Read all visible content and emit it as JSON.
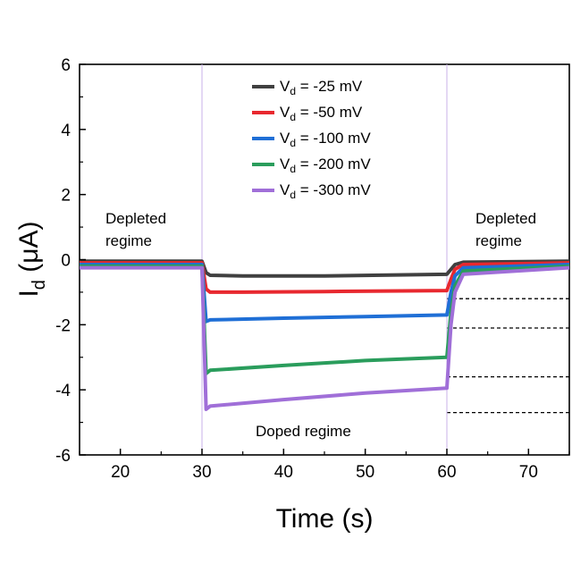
{
  "chart_data": {
    "type": "line",
    "xlabel": "Time (s)",
    "ylabel_main": "I",
    "ylabel_sub": "d",
    "ylabel_unit": " (μA)",
    "xlim": [
      15,
      75
    ],
    "ylim": [
      -6,
      6
    ],
    "xticks": [
      20,
      30,
      40,
      50,
      60,
      70
    ],
    "yticks": [
      -6,
      -4,
      -2,
      0,
      2,
      4,
      6
    ],
    "grid": false,
    "legend_position": "top-center",
    "legend_prefix": "V",
    "legend_sub": "d",
    "series": [
      {
        "name": " = -25 mV",
        "color": "#404040",
        "x": [
          15,
          30,
          30.5,
          31,
          35,
          45,
          60,
          60.5,
          61,
          62,
          75
        ],
        "y": [
          -0.05,
          -0.05,
          -0.4,
          -0.48,
          -0.5,
          -0.5,
          -0.45,
          -0.3,
          -0.15,
          -0.08,
          -0.05
        ]
      },
      {
        "name": " = -50 mV",
        "color": "#e8282f",
        "x": [
          15,
          30,
          30.5,
          31,
          35,
          45,
          60,
          60.5,
          61,
          62,
          75
        ],
        "y": [
          -0.1,
          -0.1,
          -0.9,
          -1.0,
          -1.0,
          -0.98,
          -0.95,
          -0.6,
          -0.3,
          -0.15,
          -0.1
        ]
      },
      {
        "name": " = -100 mV",
        "color": "#1f6fd6",
        "x": [
          15,
          30,
          30.5,
          31,
          40,
          50,
          60,
          60.5,
          61,
          62,
          75
        ],
        "y": [
          -0.15,
          -0.15,
          -1.9,
          -1.85,
          -1.8,
          -1.75,
          -1.7,
          -1.0,
          -0.5,
          -0.25,
          -0.15
        ]
      },
      {
        "name": " = -200 mV",
        "color": "#2a9d5c",
        "x": [
          15,
          30,
          30.5,
          31,
          40,
          50,
          60,
          60.5,
          61,
          62,
          75
        ],
        "y": [
          -0.2,
          -0.2,
          -3.5,
          -3.4,
          -3.25,
          -3.1,
          -3.0,
          -1.6,
          -0.8,
          -0.35,
          -0.2
        ]
      },
      {
        "name": " = -300 mV",
        "color": "#a06fd8",
        "x": [
          15,
          30,
          30.5,
          31,
          40,
          50,
          60,
          60.5,
          61,
          62,
          75
        ],
        "y": [
          -0.25,
          -0.25,
          -4.6,
          -4.5,
          -4.3,
          -4.1,
          -3.95,
          -2.0,
          -1.0,
          -0.45,
          -0.25
        ]
      }
    ],
    "reference_lines": [
      -1.2,
      -2.1,
      -3.6,
      -4.7
    ],
    "annotations": {
      "left_line1": "Depleted",
      "left_line2": "regime",
      "right_line1": "Depleted",
      "right_line2": "regime",
      "bottom": "Doped regime"
    }
  }
}
